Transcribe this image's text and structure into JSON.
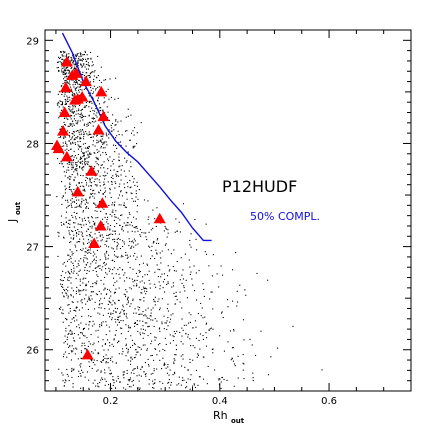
{
  "chart_data": {
    "type": "scatter",
    "title": "",
    "xlabel": "Rh",
    "xlabel_sub": "out",
    "ylabel": "J",
    "ylabel_sub": "out",
    "xlim": [
      0.08,
      0.75
    ],
    "ylim": [
      25.6,
      29.1
    ],
    "x_ticks": [
      0.2,
      0.4,
      0.6
    ],
    "y_ticks": [
      26,
      27,
      28,
      29
    ],
    "x_tick_labels": [
      "0.2",
      "0.4",
      "0.6"
    ],
    "y_tick_labels": [
      "26",
      "27",
      "28",
      "29"
    ],
    "grid": false,
    "annotation_field": "P12HUDF",
    "annotation_curve": "50% COMPL.",
    "colors": {
      "points": "#000000",
      "markers": "#ff0000",
      "curve": "#1010e0",
      "curve_label": "#1010e0"
    },
    "series": [
      {
        "style": "dots",
        "density_model": {
          "count": 2600,
          "rh_peak": 0.13,
          "rh_min": 0.1,
          "rh_max": 0.62,
          "j_min": 25.62,
          "j_max": 28.9
        }
      },
      {
        "style": "red-triangles",
        "points": [
          {
            "x": 0.12,
            "y": 28.79
          },
          {
            "x": 0.13,
            "y": 28.66
          },
          {
            "x": 0.137,
            "y": 28.68
          },
          {
            "x": 0.155,
            "y": 28.6
          },
          {
            "x": 0.183,
            "y": 28.5
          },
          {
            "x": 0.118,
            "y": 28.54
          },
          {
            "x": 0.135,
            "y": 28.42
          },
          {
            "x": 0.14,
            "y": 28.43
          },
          {
            "x": 0.148,
            "y": 28.45
          },
          {
            "x": 0.116,
            "y": 28.3
          },
          {
            "x": 0.187,
            "y": 28.26
          },
          {
            "x": 0.178,
            "y": 28.13
          },
          {
            "x": 0.113,
            "y": 28.12
          },
          {
            "x": 0.102,
            "y": 27.98
          },
          {
            "x": 0.105,
            "y": 27.95
          },
          {
            "x": 0.12,
            "y": 27.87
          },
          {
            "x": 0.165,
            "y": 27.73
          },
          {
            "x": 0.14,
            "y": 27.53
          },
          {
            "x": 0.185,
            "y": 27.42
          },
          {
            "x": 0.29,
            "y": 27.27
          },
          {
            "x": 0.182,
            "y": 27.2
          },
          {
            "x": 0.17,
            "y": 27.03
          },
          {
            "x": 0.158,
            "y": 25.95
          }
        ]
      },
      {
        "style": "completeness-curve",
        "points": [
          {
            "x": 0.112,
            "y": 29.07
          },
          {
            "x": 0.13,
            "y": 28.88
          },
          {
            "x": 0.15,
            "y": 28.6
          },
          {
            "x": 0.17,
            "y": 28.4
          },
          {
            "x": 0.19,
            "y": 28.17
          },
          {
            "x": 0.21,
            "y": 28.02
          },
          {
            "x": 0.23,
            "y": 27.91
          },
          {
            "x": 0.25,
            "y": 27.82
          },
          {
            "x": 0.27,
            "y": 27.7
          },
          {
            "x": 0.29,
            "y": 27.58
          },
          {
            "x": 0.31,
            "y": 27.45
          },
          {
            "x": 0.33,
            "y": 27.33
          },
          {
            "x": 0.35,
            "y": 27.18
          },
          {
            "x": 0.37,
            "y": 27.06
          },
          {
            "x": 0.385,
            "y": 27.06
          }
        ]
      }
    ]
  }
}
